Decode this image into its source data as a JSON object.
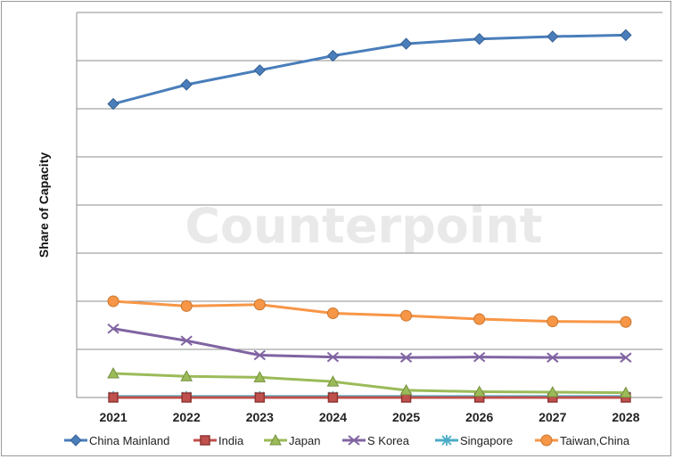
{
  "chart_data": {
    "type": "line",
    "title": "",
    "xlabel": "",
    "ylabel": "Share of Capacity",
    "watermark": "Counterpoint",
    "categories": [
      "2021",
      "2022",
      "2023",
      "2024",
      "2025",
      "2026",
      "2027",
      "2028"
    ],
    "ylim": [
      0,
      8
    ],
    "y_gridlines": 8,
    "y_tick_labels_shown": false,
    "grid": true,
    "legend_position": "bottom",
    "series": [
      {
        "name": "China Mainland",
        "color": "#4a7ebb",
        "marker": "diamond",
        "values": [
          6.1,
          6.5,
          6.8,
          7.1,
          7.35,
          7.45,
          7.5,
          7.53
        ]
      },
      {
        "name": "India",
        "color": "#c0504d",
        "marker": "square",
        "values": [
          0.0,
          0.0,
          0.0,
          0.0,
          0.0,
          0.0,
          0.0,
          0.0
        ]
      },
      {
        "name": "Japan",
        "color": "#9bbb59",
        "marker": "triangle",
        "values": [
          0.5,
          0.44,
          0.42,
          0.33,
          0.15,
          0.12,
          0.11,
          0.1
        ]
      },
      {
        "name": "S Korea",
        "color": "#8064a2",
        "marker": "x",
        "values": [
          1.43,
          1.18,
          0.88,
          0.84,
          0.83,
          0.84,
          0.83,
          0.83
        ]
      },
      {
        "name": "Singapore",
        "color": "#4bacc6",
        "marker": "star",
        "values": [
          0.02,
          0.02,
          0.02,
          0.02,
          0.02,
          0.02,
          0.02,
          0.02
        ]
      },
      {
        "name": "Taiwan,China",
        "color": "#f79646",
        "marker": "circle",
        "values": [
          2.0,
          1.9,
          1.93,
          1.75,
          1.7,
          1.63,
          1.58,
          1.57
        ]
      }
    ]
  }
}
